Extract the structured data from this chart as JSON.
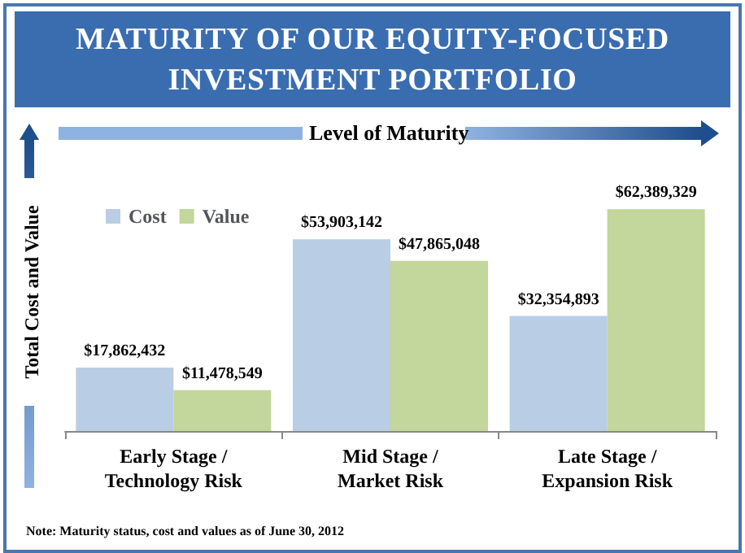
{
  "chart_data": {
    "type": "bar",
    "title": "MATURITY OF OUR EQUITY-FOCUSED INVESTMENT PORTFOLIO",
    "xlabel": "Level of Maturity",
    "ylabel": "Total Cost and Value",
    "categories": [
      "Early Stage /\nTechnology Risk",
      "Mid Stage /\nMarket Risk",
      "Late Stage /\nExpansion Risk"
    ],
    "series": [
      {
        "name": "Cost",
        "color": "#b9cde5",
        "values": [
          17862432,
          53903142,
          32354893
        ],
        "value_labels": [
          "$17,862,432",
          "$53,903,142",
          "$32,354,893"
        ]
      },
      {
        "name": "Value",
        "color": "#c3d69b",
        "values": [
          11478549,
          47865048,
          62389329
        ],
        "value_labels": [
          "$11,478,549",
          "$47,865,048",
          "$62,389,329"
        ]
      }
    ],
    "legend": "top left",
    "grid": false,
    "annotations": [
      "Note: Maturity status, cost and values as of June 30, 2012"
    ]
  }
}
